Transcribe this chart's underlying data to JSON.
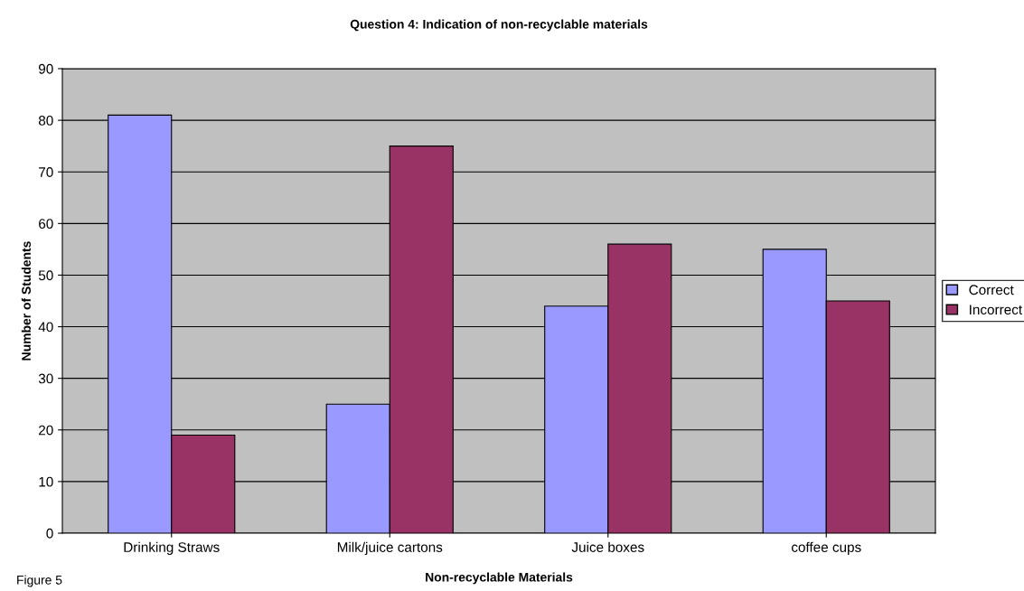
{
  "chart_data": {
    "type": "bar",
    "title": "Question 4: Indication of non-recyclable materials",
    "xlabel": "Non-recyclable Materials",
    "ylabel": "Number of Students",
    "categories": [
      "Drinking Straws",
      "Milk/juice cartons",
      "Juice boxes",
      "coffee cups"
    ],
    "series": [
      {
        "name": "Correct",
        "color": "#9999ff",
        "values": [
          81,
          25,
          44,
          55
        ]
      },
      {
        "name": "Incorrect",
        "color": "#993366",
        "values": [
          19,
          75,
          56,
          45
        ]
      }
    ],
    "ylim": [
      0,
      90
    ],
    "yticks": [
      0,
      10,
      20,
      30,
      40,
      50,
      60,
      70,
      80,
      90
    ],
    "grid": "y",
    "legend": "right",
    "annotations": [
      "Figure 5"
    ]
  }
}
